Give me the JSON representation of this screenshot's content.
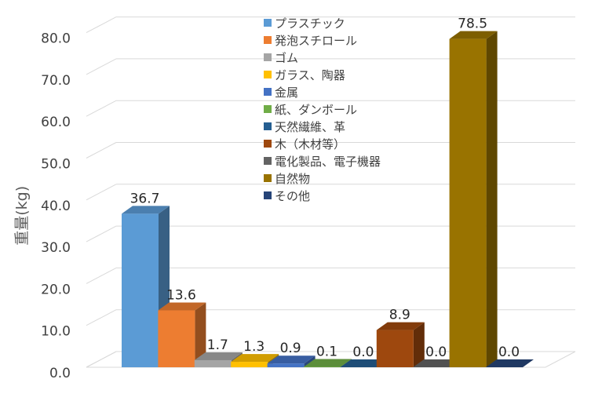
{
  "chart_data": {
    "type": "bar",
    "title": "",
    "xlabel": "",
    "ylabel": "重量(kg)",
    "ylim": [
      0,
      80
    ],
    "yticks": [
      "0.0",
      "10.0",
      "20.0",
      "30.0",
      "40.0",
      "50.0",
      "60.0",
      "70.0",
      "80.0"
    ],
    "ytick_values": [
      0,
      10,
      20,
      30,
      40,
      50,
      60,
      70,
      80
    ],
    "grid": true,
    "legend_position": "top",
    "three_d": true,
    "series": [
      {
        "name": "プラスチック",
        "value": 36.7,
        "label": "36.7",
        "color": "#5B9BD5"
      },
      {
        "name": "発泡スチロール",
        "value": 13.6,
        "label": "13.6",
        "color": "#ED7D31"
      },
      {
        "name": "ゴム",
        "value": 1.7,
        "label": "1.7",
        "color": "#A5A5A5"
      },
      {
        "name": "ガラス、陶器",
        "value": 1.3,
        "label": "1.3",
        "color": "#FFC000"
      },
      {
        "name": "金属",
        "value": 0.9,
        "label": "0.9",
        "color": "#4472C4"
      },
      {
        "name": "紙、ダンボール",
        "value": 0.1,
        "label": "0.1",
        "color": "#70AD47"
      },
      {
        "name": "天然繊維、革",
        "value": 0.0,
        "label": "0.0",
        "color": "#255E91"
      },
      {
        "name": "木（木材等）",
        "value": 8.9,
        "label": "8.9",
        "color": "#9E480E"
      },
      {
        "name": "電化製品、電子機器",
        "value": 0.0,
        "label": "0.0",
        "color": "#636363"
      },
      {
        "name": "自然物",
        "value": 78.5,
        "label": "78.5",
        "color": "#997300"
      },
      {
        "name": "その他",
        "value": 0.0,
        "label": "0.0",
        "color": "#264478"
      }
    ]
  }
}
